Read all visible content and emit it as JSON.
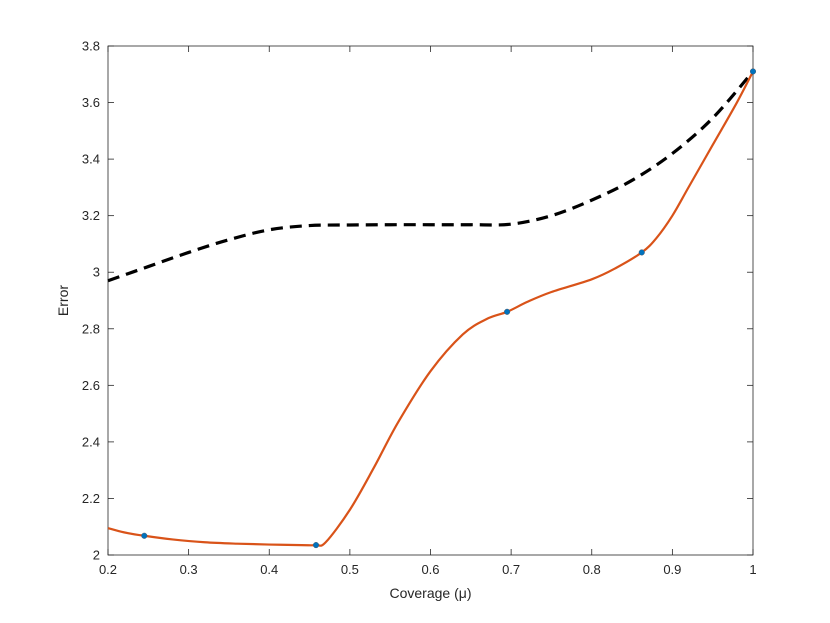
{
  "chart_data": {
    "type": "line",
    "title": "",
    "xlabel": "Coverage (μ)",
    "ylabel": "Error",
    "xlim": [
      0.2,
      1.0
    ],
    "ylim": [
      2.0,
      3.8
    ],
    "xticks": [
      0.2,
      0.3,
      0.4,
      0.5,
      0.6,
      0.7,
      0.8,
      0.9,
      1.0
    ],
    "xtick_labels": [
      "0.2",
      "0.3",
      "0.4",
      "0.5",
      "0.6",
      "0.7",
      "0.8",
      "0.9",
      "1"
    ],
    "yticks": [
      2.0,
      2.2,
      2.4,
      2.6,
      2.8,
      3.0,
      3.2,
      3.4,
      3.6,
      3.8
    ],
    "ytick_labels": [
      "2",
      "2.2",
      "2.4",
      "2.6",
      "2.8",
      "3",
      "3.2",
      "3.4",
      "3.6",
      "3.8"
    ],
    "grid": false,
    "legend": "none",
    "series": [
      {
        "style": "dashed",
        "color": "#000000",
        "x": [
          0.2,
          0.25,
          0.3,
          0.35,
          0.4,
          0.45,
          0.5,
          0.55,
          0.6,
          0.65,
          0.7,
          0.75,
          0.8,
          0.85,
          0.9,
          0.95,
          1.0
        ],
        "y": [
          2.97,
          3.02,
          3.07,
          3.115,
          3.15,
          3.165,
          3.167,
          3.168,
          3.168,
          3.168,
          3.17,
          3.2,
          3.255,
          3.325,
          3.42,
          3.545,
          3.71
        ]
      },
      {
        "style": "solid",
        "color": "#d95319",
        "x": [
          0.2,
          0.22,
          0.245,
          0.28,
          0.32,
          0.36,
          0.4,
          0.44,
          0.458,
          0.47,
          0.5,
          0.53,
          0.56,
          0.6,
          0.64,
          0.67,
          0.695,
          0.72,
          0.75,
          0.8,
          0.83,
          0.862,
          0.88,
          0.9,
          0.92,
          0.95,
          0.98,
          1.0
        ],
        "y": [
          2.095,
          2.08,
          2.068,
          2.055,
          2.045,
          2.04,
          2.037,
          2.035,
          2.035,
          2.045,
          2.16,
          2.31,
          2.47,
          2.65,
          2.78,
          2.835,
          2.86,
          2.895,
          2.93,
          2.975,
          3.015,
          3.07,
          3.12,
          3.2,
          3.3,
          3.45,
          3.6,
          3.71
        ]
      },
      {
        "style": "markers",
        "color": "#0072bd",
        "x": [
          0.245,
          0.458,
          0.695,
          0.862,
          1.0
        ],
        "y": [
          2.068,
          2.035,
          2.86,
          3.07,
          3.71
        ]
      }
    ]
  }
}
